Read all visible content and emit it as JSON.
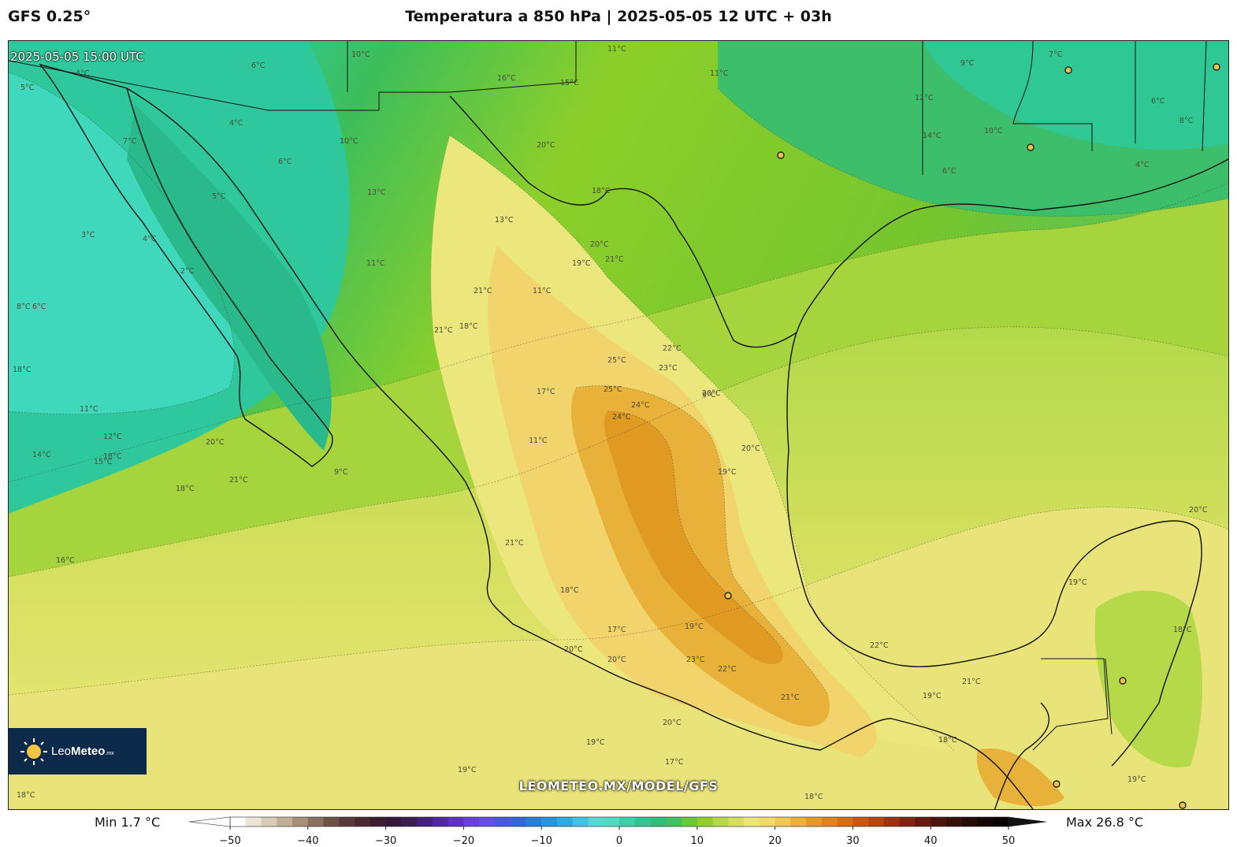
{
  "header": {
    "model": "GFS 0.25°",
    "title": "Temperatura a 850 hPa | 2025-05-05 12 UTC + 03h"
  },
  "map": {
    "valid_time": "2025-05-05 15:00 UTC",
    "watermark": "LEOMETEO.MX/MODEL/GFS",
    "logo": {
      "brand_light": "Leo",
      "brand_bold": "Meteo",
      "suffix": ".mx"
    },
    "contour_labels": [
      "10°C",
      "11°C",
      "16°C",
      "15°C",
      "11°C",
      "9°C",
      "7°C",
      "6°C",
      "8°C",
      "6°C",
      "5°C",
      "4°C",
      "4°C",
      "7°C",
      "10°C",
      "12°C",
      "14°C",
      "13°C",
      "11°C",
      "10°C",
      "6°C",
      "4°C",
      "20°C",
      "18°C",
      "13°C",
      "5°C",
      "3°C",
      "18°C",
      "4°C",
      "2°C",
      "20°C",
      "19°C",
      "21°C",
      "11°C",
      "21°C",
      "21°C",
      "8°C",
      "6°C",
      "18°C",
      "25°C",
      "22°C",
      "23°C",
      "20°C",
      "25°C",
      "24°C",
      "24°C",
      "6°C",
      "9°C",
      "11°C",
      "12°C",
      "18°C",
      "20°C",
      "20°C",
      "19°C",
      "17°C",
      "11°C",
      "9°C",
      "14°C",
      "15°C",
      "18°C",
      "21°C",
      "16°C",
      "21°C",
      "18°C",
      "17°C",
      "20°C",
      "19°C",
      "23°C",
      "22°C",
      "21°C",
      "22°C",
      "19°C",
      "19°C",
      "21°C",
      "18°C",
      "18°C",
      "20°C",
      "20°C",
      "19°C",
      "19°C",
      "17°C",
      "20°C",
      "18°C",
      "18°C",
      "19°C"
    ],
    "colors": {
      "cool": "#3fd9b8",
      "teal": "#2ec79a",
      "green": "#3dbe5a",
      "lime": "#8ccf2a",
      "light_lime": "#b6d94a",
      "yellow": "#ece67a",
      "warm": "#f0cf6a",
      "orange": "#e6aa2a",
      "deep_orange": "#e09a22"
    },
    "stations": [
      "station-1",
      "station-2",
      "station-3",
      "station-4",
      "station-5",
      "station-6",
      "station-7",
      "station-8"
    ]
  },
  "colorbar": {
    "min_label": "Min 1.7 °C",
    "max_label": "Max 26.8 °C",
    "ticks": [
      "−50",
      "−40",
      "−30",
      "−20",
      "−10",
      "0",
      "10",
      "20",
      "30",
      "40",
      "50"
    ]
  }
}
